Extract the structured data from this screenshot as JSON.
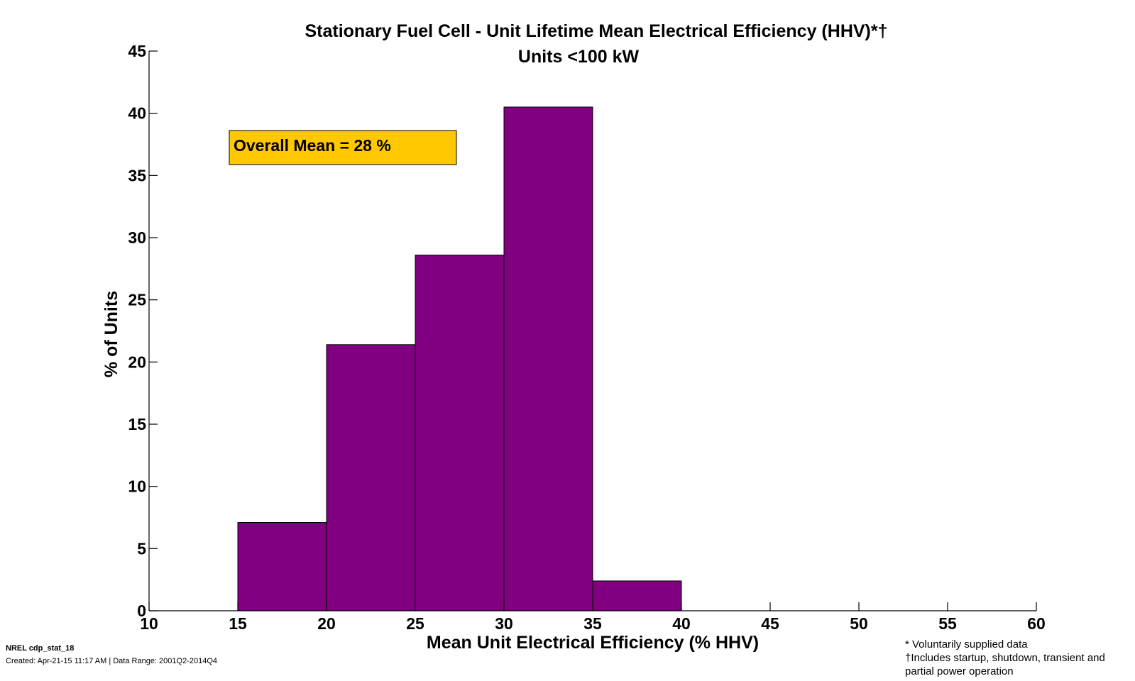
{
  "chart_data": {
    "type": "bar",
    "title": "Stationary Fuel Cell - Unit Lifetime Mean Electrical Efficiency (HHV)*†",
    "subtitle": "Units <100 kW",
    "xlabel": "Mean Unit Electrical Efficiency (% HHV)",
    "ylabel": "% of Units",
    "xlim": [
      10,
      60
    ],
    "ylim": [
      0,
      45
    ],
    "xticks": [
      "10",
      "15",
      "20",
      "25",
      "30",
      "35",
      "40",
      "45",
      "50",
      "55",
      "60"
    ],
    "yticks": [
      "0",
      "5",
      "10",
      "15",
      "20",
      "25",
      "30",
      "35",
      "40",
      "45"
    ],
    "bins": [
      {
        "x0": 15,
        "x1": 20,
        "value": 7.1
      },
      {
        "x0": 20,
        "x1": 25,
        "value": 21.4
      },
      {
        "x0": 25,
        "x1": 30,
        "value": 28.6
      },
      {
        "x0": 30,
        "x1": 35,
        "value": 40.5
      },
      {
        "x0": 35,
        "x1": 40,
        "value": 2.4
      }
    ],
    "bar_color": "#800080",
    "annotation": {
      "text": "Overall Mean = 28 %",
      "color": "#FFC800"
    },
    "grid": false
  },
  "footer": {
    "id_text": "NREL cdp_stat_18",
    "created_text": "Created: Apr-21-15 11:17 AM | Data Range: 2001Q2-2014Q4",
    "notes": [
      "* Voluntarily supplied data",
      "†Includes startup, shutdown, transient and",
      "partial power operation"
    ]
  }
}
